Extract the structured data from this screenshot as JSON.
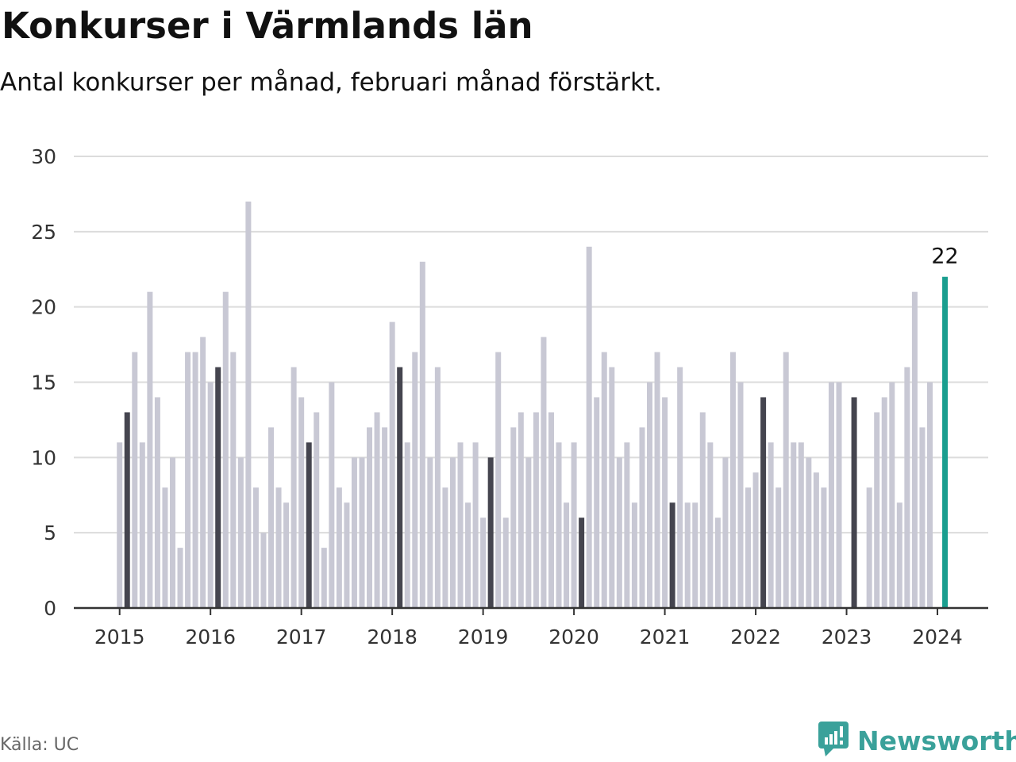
{
  "title": "Konkurser i Värmlands län",
  "subtitle": "Antal konkurser per månad, februari månad förstärkt.",
  "source": "Källa: UC",
  "brand": {
    "name": "Newsworthy",
    "icon": "newsworthy-logo-icon"
  },
  "colors": {
    "bar": "#c8c8d4",
    "highlight": "#45454f",
    "latest": "#1a9e8f",
    "grid": "#dcdcdc",
    "axis": "#333333"
  },
  "chart_data": {
    "type": "bar",
    "title": "Konkurser i Värmlands län",
    "subtitle": "Antal konkurser per månad, februari månad förstärkt.",
    "xlabel": "",
    "ylabel": "",
    "ylim": [
      0,
      30
    ],
    "yticks": [
      0,
      5,
      10,
      15,
      20,
      25,
      30
    ],
    "xticks": [
      "2015",
      "2016",
      "2017",
      "2018",
      "2019",
      "2020",
      "2021",
      "2022",
      "2023",
      "2024"
    ],
    "grid": true,
    "start": "2015-01",
    "highlight_month": "february",
    "last_value_label": "22",
    "values": [
      11,
      13,
      17,
      11,
      21,
      14,
      8,
      10,
      4,
      17,
      17,
      18,
      15,
      16,
      21,
      17,
      10,
      27,
      8,
      5,
      12,
      8,
      7,
      16,
      14,
      11,
      13,
      4,
      15,
      8,
      7,
      10,
      10,
      12,
      13,
      12,
      19,
      16,
      11,
      17,
      23,
      10,
      16,
      8,
      10,
      11,
      7,
      11,
      6,
      10,
      17,
      6,
      12,
      13,
      10,
      13,
      18,
      13,
      11,
      7,
      11,
      6,
      24,
      14,
      17,
      16,
      10,
      11,
      7,
      12,
      15,
      17,
      14,
      7,
      16,
      7,
      7,
      13,
      11,
      6,
      10,
      17,
      15,
      8,
      9,
      14,
      11,
      8,
      17,
      11,
      11,
      10,
      9,
      8,
      15,
      15,
      0,
      14,
      0,
      8,
      13,
      14,
      15,
      7,
      16,
      21,
      12,
      15,
      0,
      22
    ]
  }
}
